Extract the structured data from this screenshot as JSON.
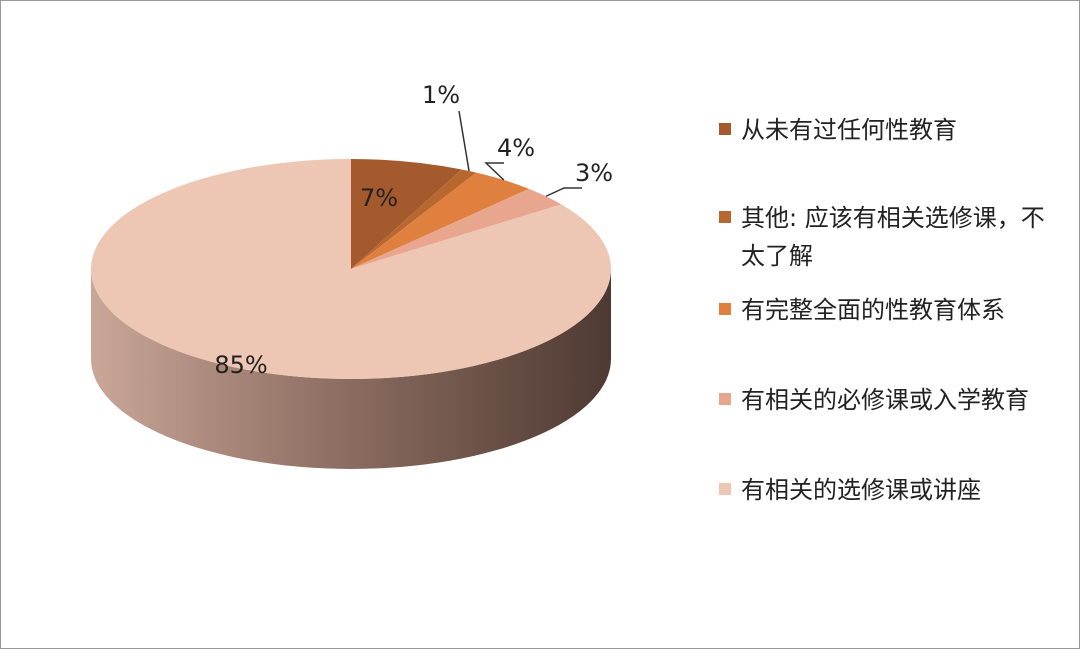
{
  "chart_data": {
    "type": "pie",
    "style": "3d",
    "categories": [
      "从未有过任何性教育",
      "其他: 应该有相关选修课，不太了解",
      "有完整全面的性教育体系",
      "有相关的必修课或入学教育",
      "有相关的选修课或讲座"
    ],
    "values": [
      7,
      1,
      4,
      3,
      85
    ],
    "value_labels": [
      "7%",
      "1%",
      "4%",
      "3%",
      "85%"
    ],
    "colors": [
      "#a45a2c",
      "#b8672f",
      "#e0803f",
      "#e8a68e",
      "#edc6b4"
    ],
    "legend": "right"
  }
}
